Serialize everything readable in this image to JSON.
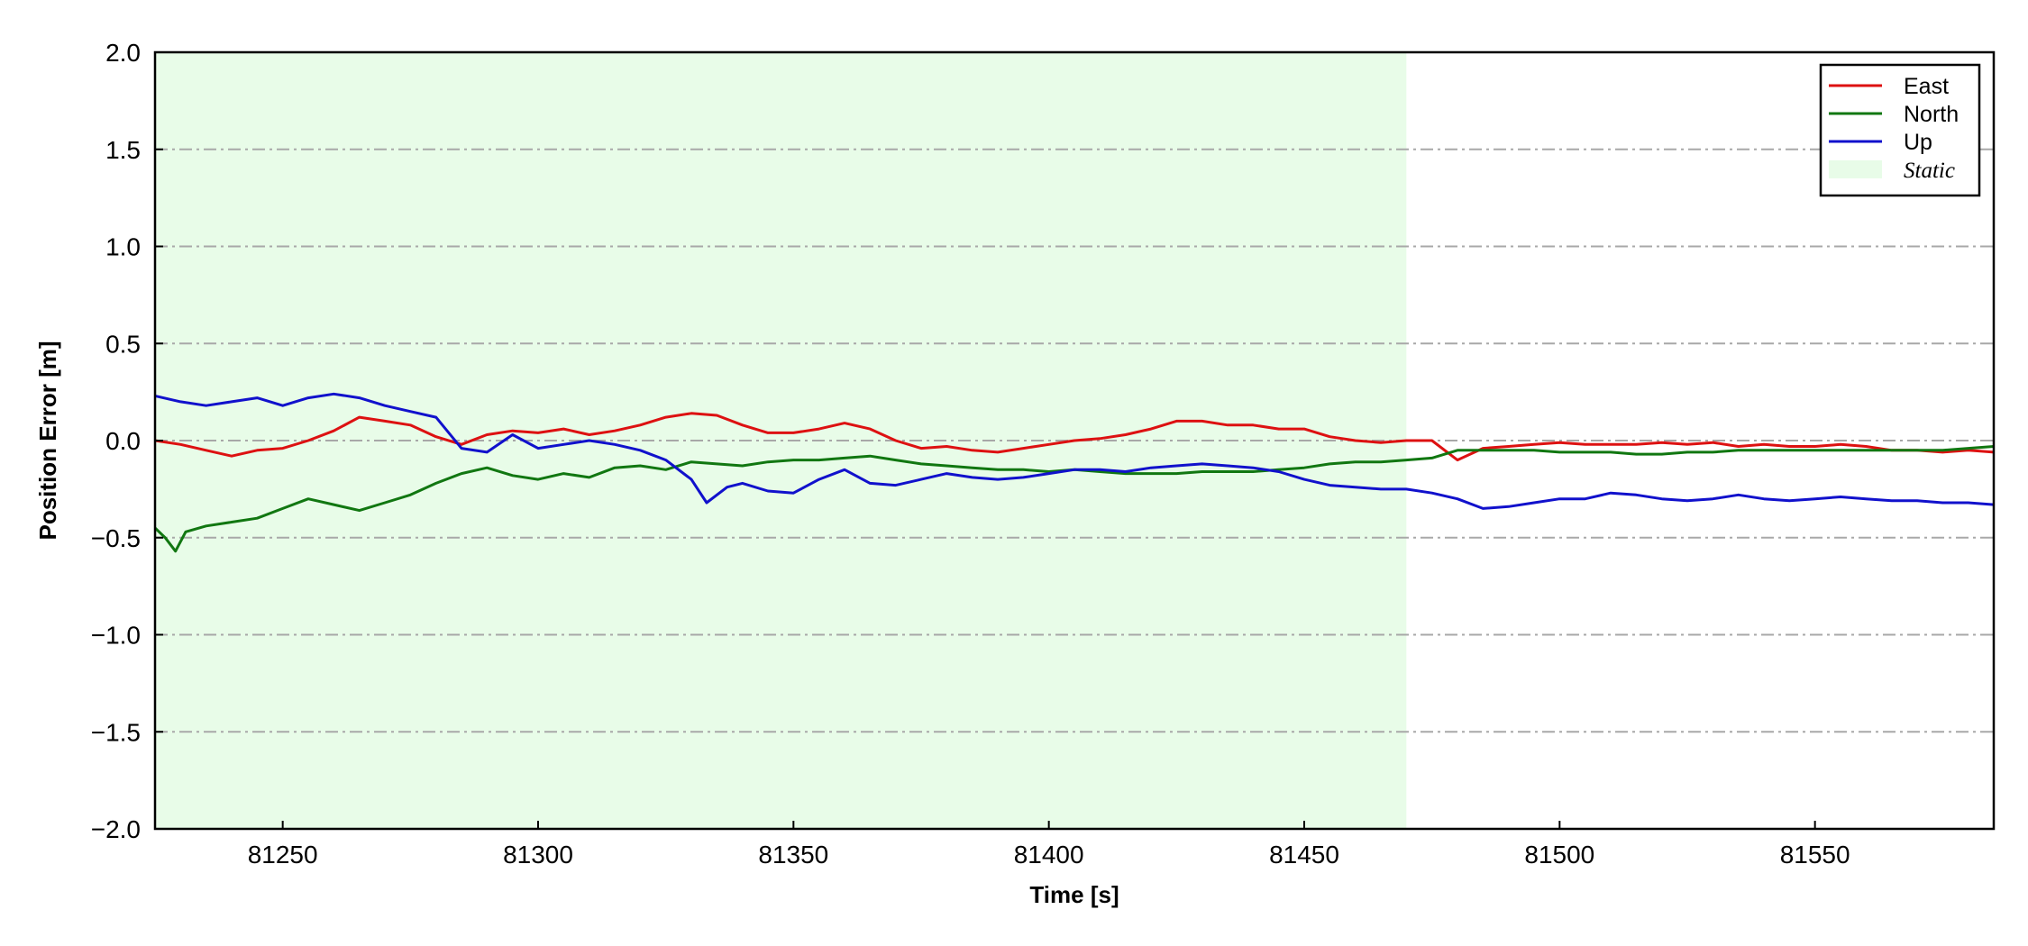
{
  "chart_data": {
    "type": "line",
    "title": "",
    "xlabel": "Time [s]",
    "ylabel": "Position Error [m]",
    "xlim": [
      81225,
      81585
    ],
    "ylim": [
      -2.0,
      2.0
    ],
    "xticks": [
      81250,
      81300,
      81350,
      81400,
      81450,
      81500,
      81550
    ],
    "xtick_labels": [
      "81250",
      "81300",
      "81350",
      "81400",
      "81450",
      "81500",
      "81550"
    ],
    "yticks": [
      2.0,
      1.5,
      1.0,
      0.5,
      0.0,
      -0.5,
      -1.0,
      -1.5,
      -2.0
    ],
    "ytick_labels": [
      "2.0",
      "1.5",
      "1.0",
      "0.5",
      "0.0",
      "−0.5",
      "−1.0",
      "−1.5",
      "−2.0"
    ],
    "grid": "horizontal dash-dot",
    "legend_position": "top-right",
    "shaded_region": {
      "name": "Static",
      "x_start": 81225,
      "x_end": 81470,
      "color": "#e8fce8"
    },
    "series": [
      {
        "name": "East",
        "color": "#dd1111",
        "x": [
          81225,
          81230,
          81235,
          81240,
          81245,
          81250,
          81255,
          81260,
          81265,
          81270,
          81275,
          81280,
          81285,
          81290,
          81295,
          81300,
          81305,
          81310,
          81315,
          81320,
          81325,
          81330,
          81335,
          81340,
          81345,
          81350,
          81355,
          81360,
          81365,
          81370,
          81375,
          81380,
          81385,
          81390,
          81395,
          81400,
          81405,
          81410,
          81415,
          81420,
          81425,
          81430,
          81435,
          81440,
          81445,
          81450,
          81455,
          81460,
          81465,
          81470,
          81475,
          81480,
          81485,
          81490,
          81495,
          81500,
          81505,
          81510,
          81515,
          81520,
          81525,
          81530,
          81535,
          81540,
          81545,
          81550,
          81555,
          81560,
          81565,
          81570,
          81575,
          81580,
          81585
        ],
        "values": [
          0.0,
          -0.02,
          -0.05,
          -0.08,
          -0.05,
          -0.04,
          0.0,
          0.05,
          0.12,
          0.1,
          0.08,
          0.02,
          -0.02,
          0.03,
          0.05,
          0.04,
          0.06,
          0.03,
          0.05,
          0.08,
          0.12,
          0.14,
          0.13,
          0.08,
          0.04,
          0.04,
          0.06,
          0.09,
          0.06,
          0.0,
          -0.04,
          -0.03,
          -0.05,
          -0.06,
          -0.04,
          -0.02,
          0.0,
          0.01,
          0.03,
          0.06,
          0.1,
          0.1,
          0.08,
          0.08,
          0.06,
          0.06,
          0.02,
          0.0,
          -0.01,
          0.0,
          0.0,
          -0.1,
          -0.04,
          -0.03,
          -0.02,
          -0.01,
          -0.02,
          -0.02,
          -0.02,
          -0.01,
          -0.02,
          -0.01,
          -0.03,
          -0.02,
          -0.03,
          -0.03,
          -0.02,
          -0.03,
          -0.05,
          -0.05,
          -0.06,
          -0.05,
          -0.06
        ]
      },
      {
        "name": "North",
        "color": "#117711",
        "x": [
          81225,
          81227,
          81229,
          81231,
          81235,
          81240,
          81245,
          81250,
          81255,
          81260,
          81265,
          81270,
          81275,
          81280,
          81285,
          81290,
          81295,
          81300,
          81305,
          81310,
          81315,
          81320,
          81325,
          81330,
          81335,
          81340,
          81345,
          81350,
          81355,
          81360,
          81365,
          81370,
          81375,
          81380,
          81385,
          81390,
          81395,
          81400,
          81405,
          81410,
          81415,
          81420,
          81425,
          81430,
          81435,
          81440,
          81445,
          81450,
          81455,
          81460,
          81465,
          81470,
          81475,
          81480,
          81485,
          81490,
          81495,
          81500,
          81505,
          81510,
          81515,
          81520,
          81525,
          81530,
          81535,
          81540,
          81545,
          81550,
          81555,
          81560,
          81565,
          81570,
          81575,
          81580,
          81585
        ],
        "values": [
          -0.45,
          -0.5,
          -0.57,
          -0.47,
          -0.44,
          -0.42,
          -0.4,
          -0.35,
          -0.3,
          -0.33,
          -0.36,
          -0.32,
          -0.28,
          -0.22,
          -0.17,
          -0.14,
          -0.18,
          -0.2,
          -0.17,
          -0.19,
          -0.14,
          -0.13,
          -0.15,
          -0.11,
          -0.12,
          -0.13,
          -0.11,
          -0.1,
          -0.1,
          -0.09,
          -0.08,
          -0.1,
          -0.12,
          -0.13,
          -0.14,
          -0.15,
          -0.15,
          -0.16,
          -0.15,
          -0.16,
          -0.17,
          -0.17,
          -0.17,
          -0.16,
          -0.16,
          -0.16,
          -0.15,
          -0.14,
          -0.12,
          -0.11,
          -0.11,
          -0.1,
          -0.09,
          -0.05,
          -0.05,
          -0.05,
          -0.05,
          -0.06,
          -0.06,
          -0.06,
          -0.07,
          -0.07,
          -0.06,
          -0.06,
          -0.05,
          -0.05,
          -0.05,
          -0.05,
          -0.05,
          -0.05,
          -0.05,
          -0.05,
          -0.05,
          -0.04,
          -0.03
        ]
      },
      {
        "name": "Up",
        "color": "#1111cc",
        "x": [
          81225,
          81230,
          81235,
          81240,
          81245,
          81250,
          81255,
          81260,
          81265,
          81270,
          81275,
          81280,
          81285,
          81290,
          81295,
          81300,
          81305,
          81310,
          81315,
          81320,
          81325,
          81330,
          81333,
          81337,
          81340,
          81345,
          81350,
          81355,
          81360,
          81365,
          81370,
          81375,
          81380,
          81385,
          81390,
          81395,
          81400,
          81405,
          81410,
          81415,
          81420,
          81425,
          81430,
          81435,
          81440,
          81445,
          81450,
          81455,
          81460,
          81465,
          81470,
          81475,
          81480,
          81485,
          81490,
          81495,
          81500,
          81505,
          81510,
          81515,
          81520,
          81525,
          81530,
          81535,
          81540,
          81545,
          81550,
          81555,
          81560,
          81565,
          81570,
          81575,
          81580,
          81585
        ],
        "values": [
          0.23,
          0.2,
          0.18,
          0.2,
          0.22,
          0.18,
          0.22,
          0.24,
          0.22,
          0.18,
          0.15,
          0.12,
          -0.04,
          -0.06,
          0.03,
          -0.04,
          -0.02,
          0.0,
          -0.02,
          -0.05,
          -0.1,
          -0.2,
          -0.32,
          -0.24,
          -0.22,
          -0.26,
          -0.27,
          -0.2,
          -0.15,
          -0.22,
          -0.23,
          -0.2,
          -0.17,
          -0.19,
          -0.2,
          -0.19,
          -0.17,
          -0.15,
          -0.15,
          -0.16,
          -0.14,
          -0.13,
          -0.12,
          -0.13,
          -0.14,
          -0.16,
          -0.2,
          -0.23,
          -0.24,
          -0.25,
          -0.25,
          -0.27,
          -0.3,
          -0.35,
          -0.34,
          -0.32,
          -0.3,
          -0.3,
          -0.27,
          -0.28,
          -0.3,
          -0.31,
          -0.3,
          -0.28,
          -0.3,
          -0.31,
          -0.3,
          -0.29,
          -0.3,
          -0.31,
          -0.31,
          -0.32,
          -0.32,
          -0.33
        ]
      }
    ]
  }
}
